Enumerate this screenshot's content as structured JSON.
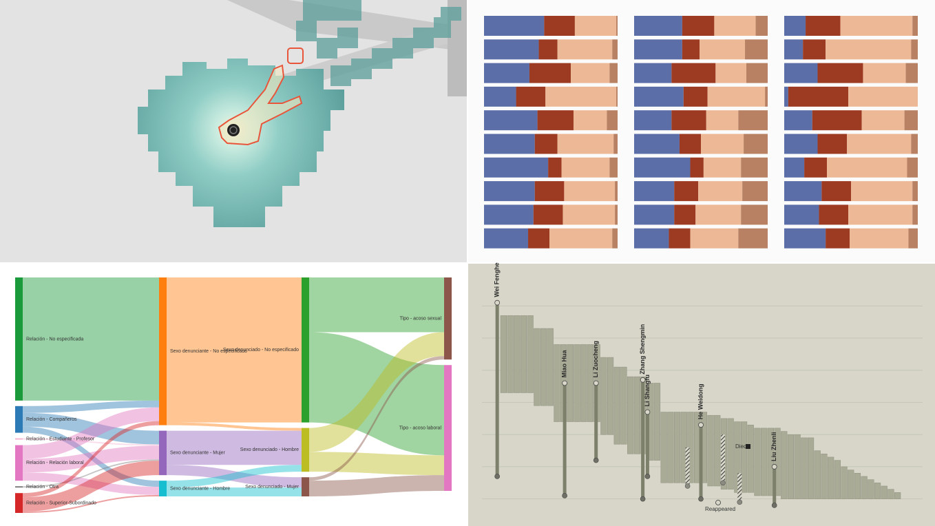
{
  "chart_data": [
    {
      "type": "stacked-bar-panels",
      "colors": [
        "#5b6ea8",
        "#9c3b22",
        "#edb896",
        "#b88163"
      ],
      "xlim": [
        0,
        100
      ],
      "panels": [
        {
          "values": [
            [
              45,
              23,
              31,
              1
            ],
            [
              41,
              14,
              41,
              4
            ],
            [
              34,
              31,
              29,
              6
            ],
            [
              24,
              22,
              53,
              1
            ],
            [
              40,
              27,
              25,
              8
            ],
            [
              38,
              17,
              42,
              3
            ],
            [
              48,
              10,
              36,
              6
            ],
            [
              38,
              22,
              38,
              2
            ],
            [
              37,
              22,
              39,
              2
            ],
            [
              33,
              16,
              47,
              4
            ]
          ]
        },
        {
          "values": [
            [
              36,
              24,
              31,
              9
            ],
            [
              36,
              13,
              34,
              17
            ],
            [
              28,
              33,
              23,
              16
            ],
            [
              37,
              18,
              43,
              2
            ],
            [
              28,
              26,
              24,
              22
            ],
            [
              34,
              16,
              32,
              18
            ],
            [
              42,
              10,
              28,
              20
            ],
            [
              30,
              18,
              33,
              19
            ],
            [
              30,
              16,
              34,
              20
            ],
            [
              26,
              16,
              36,
              22
            ]
          ]
        },
        {
          "values": [
            [
              16,
              26,
              54,
              4
            ],
            [
              14,
              17,
              64,
              5
            ],
            [
              25,
              34,
              32,
              9
            ],
            [
              3,
              45,
              52,
              0
            ],
            [
              21,
              37,
              32,
              10
            ],
            [
              25,
              22,
              48,
              5
            ],
            [
              15,
              17,
              60,
              8
            ],
            [
              28,
              22,
              46,
              4
            ],
            [
              26,
              22,
              48,
              4
            ],
            [
              31,
              18,
              44,
              7
            ]
          ]
        }
      ]
    },
    {
      "type": "sankey",
      "columns": [
        [
          {
            "name": "Relación - No especificada",
            "color": "#1a9a3a"
          },
          {
            "name": "Relación - Compañeros",
            "color": "#2c7bb6"
          },
          {
            "name": "Relación - Estudiante - Profesor",
            "color": "#f7b6d2"
          },
          {
            "name": "Relación - Relación laboral",
            "color": "#e377c2"
          },
          {
            "name": "Relación - Otra",
            "color": "#7f7f7f"
          },
          {
            "name": "Relación - Superior-Subordinado",
            "color": "#d62728"
          }
        ],
        [
          {
            "name": "Sexo denunciante - No especificado",
            "color": "#ff7f0e"
          },
          {
            "name": "Sexo denunciante - Mujer",
            "color": "#9467bd"
          },
          {
            "name": "Sexo denunciante - Hombre",
            "color": "#17becf"
          }
        ],
        [
          {
            "name": "Sexo denunciado - No especificado",
            "color": "#2ca02c"
          },
          {
            "name": "Sexo denunciado - Hombre",
            "color": "#bcbd22"
          },
          {
            "name": "Sexo denunciado - Mujer",
            "color": "#8c564b"
          }
        ],
        [
          {
            "name": "Tipo - acoso sexual",
            "color": "#8c564b"
          },
          {
            "name": "Tipo - acoso laboral",
            "color": "#e377c2"
          }
        ]
      ],
      "links": [
        {
          "from": [
            0,
            0
          ],
          "to": [
            1,
            0
          ],
          "value": 180
        },
        {
          "from": [
            0,
            1
          ],
          "to": [
            1,
            0
          ],
          "value": 10
        },
        {
          "from": [
            0,
            1
          ],
          "to": [
            1,
            1
          ],
          "value": 20
        },
        {
          "from": [
            0,
            1
          ],
          "to": [
            1,
            2
          ],
          "value": 9
        },
        {
          "from": [
            0,
            2
          ],
          "to": [
            1,
            1
          ],
          "value": 2
        },
        {
          "from": [
            0,
            3
          ],
          "to": [
            1,
            0
          ],
          "value": 20
        },
        {
          "from": [
            0,
            3
          ],
          "to": [
            1,
            1
          ],
          "value": 20
        },
        {
          "from": [
            0,
            3
          ],
          "to": [
            1,
            2
          ],
          "value": 12
        },
        {
          "from": [
            0,
            4
          ],
          "to": [
            1,
            1
          ],
          "value": 2
        },
        {
          "from": [
            0,
            5
          ],
          "to": [
            1,
            0
          ],
          "value": 6
        },
        {
          "from": [
            0,
            5
          ],
          "to": [
            1,
            1
          ],
          "value": 21
        },
        {
          "from": [
            0,
            5
          ],
          "to": [
            1,
            2
          ],
          "value": 2
        },
        {
          "from": [
            1,
            0
          ],
          "to": [
            2,
            0
          ],
          "value": 212
        },
        {
          "from": [
            1,
            0
          ],
          "to": [
            2,
            1
          ],
          "value": 4
        },
        {
          "from": [
            1,
            1
          ],
          "to": [
            2,
            1
          ],
          "value": 50
        },
        {
          "from": [
            1,
            1
          ],
          "to": [
            2,
            2
          ],
          "value": 15
        },
        {
          "from": [
            1,
            2
          ],
          "to": [
            2,
            1
          ],
          "value": 10
        },
        {
          "from": [
            1,
            2
          ],
          "to": [
            2,
            2
          ],
          "value": 13
        },
        {
          "from": [
            2,
            0
          ],
          "to": [
            3,
            0
          ],
          "value": 80
        },
        {
          "from": [
            2,
            0
          ],
          "to": [
            3,
            1
          ],
          "value": 132
        },
        {
          "from": [
            2,
            1
          ],
          "to": [
            3,
            0
          ],
          "value": 35
        },
        {
          "from": [
            2,
            1
          ],
          "to": [
            3,
            1
          ],
          "value": 29
        },
        {
          "from": [
            2,
            2
          ],
          "to": [
            3,
            0
          ],
          "value": 5
        },
        {
          "from": [
            2,
            2
          ],
          "to": [
            3,
            1
          ],
          "value": 23
        }
      ]
    },
    {
      "type": "range-bar",
      "color": "#a9ab96",
      "xlim": [
        -1,
        60
      ],
      "ylim": [
        -0.5,
        6.2
      ],
      "gridlines": [
        0,
        1,
        2,
        3,
        4,
        5,
        6
      ],
      "values": [
        5.7,
        5.7,
        5.7,
        5.7,
        5.7,
        5.3,
        5.3,
        5.3,
        4.8,
        4.8,
        4.8,
        4.8,
        4.8,
        4.8,
        4.8,
        4.4,
        4.4,
        4.1,
        4.1,
        3.8,
        3.8,
        3.8,
        3.6,
        3.6,
        2.7,
        2.7,
        2.7,
        2.7,
        2.7,
        2.7,
        2.7,
        2.6,
        2.6,
        2.5,
        2.5,
        2.4,
        2.4,
        2.3,
        2.2,
        2.2,
        2.2,
        2.2,
        2.1,
        2.0,
        2.0,
        1.9,
        1.9,
        1.5,
        1.4,
        1.3,
        1.2,
        1.0,
        0.9,
        0.8,
        0.7,
        0.6,
        0.5,
        0.4,
        0.3,
        0.2
      ],
      "lows": [
        3.3,
        3.3,
        3.3,
        3.3,
        3.3,
        2.9,
        2.9,
        2.9,
        2.4,
        2.4,
        2.4,
        2.4,
        2.4,
        2.4,
        2.4,
        2.0,
        2.0,
        1.7,
        1.7,
        1.4,
        1.4,
        1.4,
        1.2,
        1.2,
        0.5,
        0.5,
        0.5,
        0.5,
        0.5,
        0.5,
        0.5,
        0.4,
        0.4,
        0.3,
        0.3,
        0.2,
        0.2,
        0.2,
        0.1,
        0.1,
        0.1,
        0.1,
        0,
        0,
        0,
        0,
        0,
        0,
        0,
        0,
        0,
        0,
        0,
        0,
        0,
        0,
        0,
        0,
        0,
        0
      ],
      "people": [
        {
          "name": "Wei Fenghe",
          "x": -0.5,
          "start": 6.1,
          "end": 0.7
        },
        {
          "name": "Miao Hua",
          "x": 9.6,
          "start": 3.6,
          "end": 0.1
        },
        {
          "name": "Li Zuocheng",
          "x": 14.3,
          "start": 3.6,
          "end": 1.2
        },
        {
          "name": "Zhang Shengmin",
          "x": 21.3,
          "start": 3.7,
          "end": 0
        },
        {
          "name": "Li Shangfu",
          "x": 22,
          "start": 2.7,
          "end": 0.7
        },
        {
          "name": "He Weidong",
          "x": 30,
          "start": 2.3,
          "end": 0
        },
        {
          "name": "Liu Zhenli",
          "x": 41,
          "start": 1.0,
          "end": -0.2
        }
      ],
      "hatched": [
        {
          "x": 28,
          "start": 1.6,
          "end": 0.4
        },
        {
          "x": 33.3,
          "start": 2.0,
          "end": 0.5
        },
        {
          "x": 35.8,
          "start": 0.8,
          "end": -0.1
        }
      ],
      "annotations": [
        "Died",
        "Reappeared"
      ]
    }
  ]
}
